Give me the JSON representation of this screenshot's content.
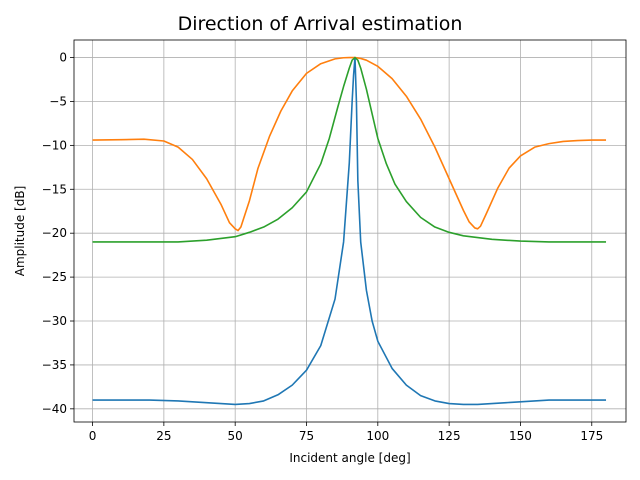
{
  "chart_data": {
    "type": "line",
    "title": "Direction of Arrival estimation",
    "xlabel": "Incident angle [deg]",
    "ylabel": "Amplitude [dB]",
    "xlim": [
      -6.5,
      187
    ],
    "ylim": [
      -41.5,
      2
    ],
    "xticks": [
      0,
      25,
      50,
      75,
      100,
      125,
      150,
      175
    ],
    "yticks": [
      0,
      -5,
      -10,
      -15,
      -20,
      -25,
      -30,
      -35,
      -40
    ],
    "xtick_labels": [
      "0",
      "25",
      "50",
      "75",
      "100",
      "125",
      "150",
      "175"
    ],
    "ytick_labels": [
      "0",
      "−5",
      "−10",
      "−15",
      "−20",
      "−25",
      "−30",
      "−35",
      "−40"
    ],
    "grid": true,
    "series": [
      {
        "color": "#1f77b4",
        "x": [
          0,
          10,
          20,
          30,
          40,
          50,
          55,
          60,
          65,
          70,
          75,
          80,
          85,
          88,
          90,
          91,
          91.5,
          92,
          92.5,
          93,
          94,
          96,
          98,
          100,
          105,
          110,
          115,
          120,
          125,
          130,
          135,
          140,
          145,
          150,
          160,
          170,
          180
        ],
        "y": [
          -39,
          -39,
          -39,
          -39.1,
          -39.3,
          -39.5,
          -39.4,
          -39.1,
          -38.4,
          -37.3,
          -35.6,
          -32.8,
          -27.5,
          -21,
          -12,
          -5,
          -2,
          0,
          -5,
          -14,
          -21,
          -26.5,
          -30,
          -32.3,
          -35.4,
          -37.3,
          -38.5,
          -39.1,
          -39.4,
          -39.5,
          -39.5,
          -39.4,
          -39.3,
          -39.2,
          -39,
          -39,
          -39
        ]
      },
      {
        "color": "#ff7f0e",
        "x": [
          0,
          10,
          18,
          25,
          30,
          35,
          40,
          45,
          48,
          50,
          51,
          52,
          55,
          58,
          62,
          66,
          70,
          75,
          80,
          85,
          88,
          90,
          92,
          94,
          96,
          100,
          105,
          110,
          115,
          120,
          125,
          130,
          132,
          134,
          135,
          136,
          138,
          142,
          146,
          150,
          155,
          160,
          165,
          170,
          175,
          180
        ],
        "y": [
          -9.4,
          -9.35,
          -9.3,
          -9.5,
          -10.2,
          -11.6,
          -13.8,
          -16.7,
          -18.8,
          -19.5,
          -19.7,
          -19.3,
          -16.3,
          -12.6,
          -9.0,
          -6.1,
          -3.8,
          -1.8,
          -0.7,
          -0.15,
          -0.02,
          0,
          0,
          -0.1,
          -0.3,
          -1.0,
          -2.4,
          -4.4,
          -7.0,
          -10.2,
          -13.8,
          -17.4,
          -18.7,
          -19.4,
          -19.5,
          -19.2,
          -17.8,
          -14.9,
          -12.6,
          -11.2,
          -10.2,
          -9.8,
          -9.55,
          -9.45,
          -9.4,
          -9.4
        ]
      },
      {
        "color": "#2ca02c",
        "x": [
          0,
          10,
          20,
          30,
          40,
          50,
          55,
          60,
          65,
          70,
          75,
          80,
          83,
          86,
          88,
          90,
          91,
          92,
          93,
          94,
          96,
          98,
          100,
          103,
          106,
          110,
          115,
          120,
          125,
          130,
          140,
          150,
          160,
          170,
          180
        ],
        "y": [
          -21,
          -21,
          -21,
          -21,
          -20.8,
          -20.4,
          -19.9,
          -19.3,
          -18.4,
          -17.1,
          -15.3,
          -12.1,
          -9.2,
          -5.6,
          -3.3,
          -1.2,
          -0.3,
          0,
          -0.3,
          -1.2,
          -3.6,
          -6.4,
          -9.2,
          -12.1,
          -14.4,
          -16.4,
          -18.2,
          -19.3,
          -19.9,
          -20.3,
          -20.7,
          -20.9,
          -21,
          -21,
          -21
        ]
      }
    ]
  }
}
